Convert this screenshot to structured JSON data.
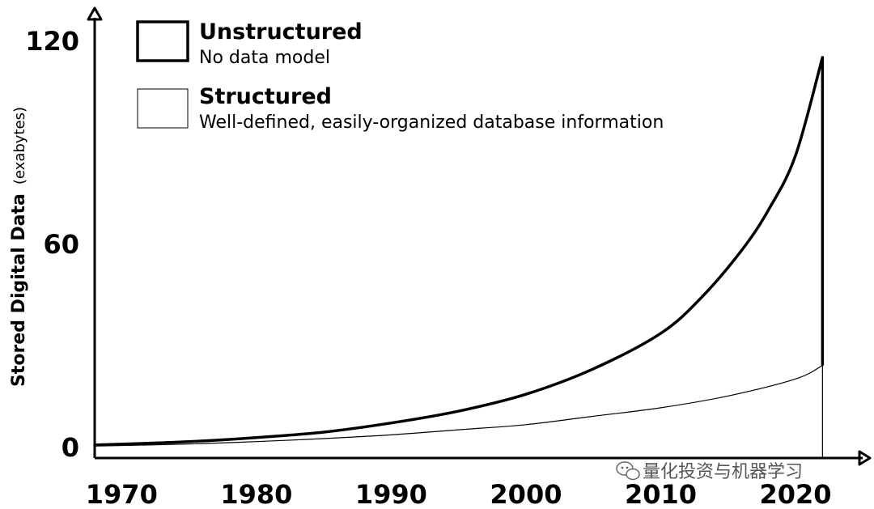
{
  "chart_data": {
    "type": "area",
    "ylabel": "Stored Digital Data",
    "ylabel_unit": "(exabytes)",
    "xlabel": "",
    "x_ticks": [
      "1970",
      "1980",
      "1990",
      "2000",
      "2010",
      "2020"
    ],
    "y_ticks": [
      "0",
      "60",
      "120"
    ],
    "xlim": [
      1968,
      2023
    ],
    "ylim": [
      0,
      120
    ],
    "grid": false,
    "legend_position": "top-left",
    "series": [
      {
        "name": "Unstructured",
        "description": "No data model",
        "stroke_weight": "heavy",
        "x": [
          1968,
          1975,
          1980,
          1985,
          1990,
          1995,
          2000,
          2005,
          2010,
          2013,
          2016,
          2018,
          2020,
          2022
        ],
        "y": [
          0.5,
          1.5,
          2.7,
          4.3,
          7.0,
          10.5,
          15.5,
          23.0,
          33.5,
          44.0,
          58.0,
          70.0,
          86.0,
          115.0
        ]
      },
      {
        "name": "Structured",
        "description": "Well-defined, easily-organized database information",
        "stroke_weight": "light",
        "x": [
          1968,
          1975,
          1980,
          1985,
          1990,
          1995,
          2000,
          2005,
          2010,
          2015,
          2020,
          2022
        ],
        "y": [
          0.2,
          0.8,
          1.5,
          2.4,
          3.5,
          5.0,
          6.5,
          9.0,
          11.5,
          15.0,
          20.0,
          24.0
        ]
      }
    ]
  },
  "watermark": {
    "text": "量化投资与机器学习",
    "icon": "wechat-icon"
  }
}
